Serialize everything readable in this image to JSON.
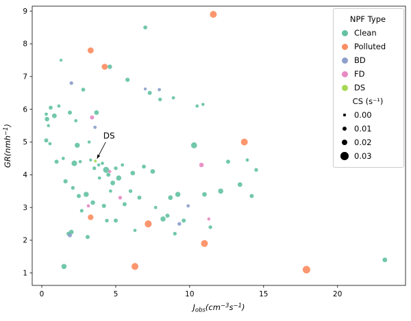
{
  "chart_data": {
    "type": "scatter",
    "title": "",
    "xlabel": "J_obs (cm^-3 s^-1)",
    "ylabel": "GR (nm h^-1)",
    "xlabel_parts": [
      {
        "t": "J",
        "style": "norm"
      },
      {
        "t": "obs",
        "style": "sub"
      },
      {
        "t": "(cm",
        "style": "norm"
      },
      {
        "t": "−3",
        "style": "sup"
      },
      {
        "t": "s",
        "style": "norm"
      },
      {
        "t": "−1",
        "style": "sup"
      },
      {
        "t": ")",
        "style": "norm"
      }
    ],
    "ylabel_parts": [
      {
        "t": "GR(nmh",
        "style": "norm"
      },
      {
        "t": "−1",
        "style": "sup"
      },
      {
        "t": ")",
        "style": "norm"
      }
    ],
    "xlim": [
      -0.65,
      24.6
    ],
    "ylim": [
      0.62,
      9.15
    ],
    "xticks": [
      0,
      5,
      10,
      15,
      20
    ],
    "yticks": [
      1,
      2,
      3,
      4,
      5,
      6,
      7,
      8,
      9
    ],
    "grid": false,
    "legend": {
      "title": "NPF Type",
      "position": "upper right",
      "entries": [
        {
          "label": "Clean",
          "color": "#66c2a5"
        },
        {
          "label": "Polluted",
          "color": "#fc8d62"
        },
        {
          "label": "BD",
          "color": "#8da0cb"
        },
        {
          "label": "FD",
          "color": "#e78ac3"
        },
        {
          "label": "DS",
          "color": "#a6d854"
        }
      ],
      "size_title": "CS (s⁻¹)",
      "size_entries": [
        {
          "label": "0.00",
          "cs": 0.0
        },
        {
          "label": "0.01",
          "cs": 0.01
        },
        {
          "label": "0.02",
          "cs": 0.02
        },
        {
          "label": "0.03",
          "cs": 0.03
        }
      ]
    },
    "annotation": {
      "text": "DS",
      "text_at": [
        4.55,
        5.1
      ],
      "point_at": [
        3.62,
        4.42
      ]
    },
    "series": [
      {
        "name": "Clean",
        "color": "#66c2a5",
        "points": [
          [
            0.3,
            5.85,
            0.006
          ],
          [
            0.35,
            5.7,
            0.012
          ],
          [
            0.3,
            5.05,
            0.01
          ],
          [
            0.55,
            4.95,
            0.006
          ],
          [
            0.6,
            6.05,
            0.009
          ],
          [
            0.85,
            5.8,
            0.013
          ],
          [
            1.15,
            6.1,
            0.006
          ],
          [
            1.3,
            7.5,
            0.004
          ],
          [
            1.0,
            4.4,
            0.01
          ],
          [
            1.45,
            4.5,
            0.006
          ],
          [
            1.6,
            3.8,
            0.011
          ],
          [
            1.5,
            1.2,
            0.016
          ],
          [
            1.9,
            5.9,
            0.01
          ],
          [
            2.0,
            2.25,
            0.013
          ],
          [
            2.1,
            3.6,
            0.008
          ],
          [
            2.3,
            5.65,
            0.006
          ],
          [
            2.4,
            4.9,
            0.015
          ],
          [
            2.5,
            3.35,
            0.01
          ],
          [
            2.6,
            4.4,
            0.006
          ],
          [
            2.8,
            6.6,
            0.009
          ],
          [
            3.0,
            3.4,
            0.016
          ],
          [
            3.1,
            2.1,
            0.01
          ],
          [
            3.2,
            5.0,
            0.005
          ],
          [
            3.45,
            3.15,
            0.012
          ],
          [
            3.55,
            4.2,
            0.008
          ],
          [
            3.7,
            5.9,
            0.013
          ],
          [
            3.9,
            3.9,
            0.006
          ],
          [
            4.6,
            7.3,
            0.012
          ],
          [
            4.1,
            4.35,
            0.006
          ],
          [
            4.2,
            3.05,
            0.011
          ],
          [
            4.4,
            2.6,
            0.008
          ],
          [
            4.5,
            4.0,
            0.01
          ],
          [
            4.65,
            3.5,
            0.006
          ],
          [
            4.8,
            3.75,
            0.013
          ],
          [
            5.0,
            4.2,
            0.008
          ],
          [
            5.0,
            2.6,
            0.01
          ],
          [
            5.2,
            3.9,
            0.016
          ],
          [
            5.45,
            4.3,
            0.006
          ],
          [
            5.6,
            3.1,
            0.01
          ],
          [
            5.8,
            6.9,
            0.011
          ],
          [
            6.0,
            3.5,
            0.008
          ],
          [
            6.15,
            4.05,
            0.013
          ],
          [
            6.3,
            2.3,
            0.006
          ],
          [
            6.6,
            3.3,
            0.01
          ],
          [
            7.0,
            8.5,
            0.009
          ],
          [
            7.3,
            6.5,
            0.01
          ],
          [
            7.5,
            4.1,
            0.013
          ],
          [
            7.7,
            3.0,
            0.006
          ],
          [
            8.0,
            6.3,
            0.008
          ],
          [
            8.2,
            2.65,
            0.016
          ],
          [
            8.5,
            2.75,
            0.01
          ],
          [
            8.7,
            3.3,
            0.013
          ],
          [
            9.0,
            2.2,
            0.008
          ],
          [
            9.2,
            3.4,
            0.016
          ],
          [
            9.6,
            2.6,
            0.01
          ],
          [
            10.3,
            4.9,
            0.02
          ],
          [
            10.5,
            6.1,
            0.006
          ],
          [
            11.0,
            3.4,
            0.013
          ],
          [
            11.4,
            2.4,
            0.008
          ],
          [
            12.1,
            3.5,
            0.016
          ],
          [
            12.6,
            4.4,
            0.01
          ],
          [
            13.4,
            3.7,
            0.013
          ],
          [
            14.2,
            3.35,
            0.01
          ],
          [
            14.5,
            4.15,
            0.008
          ],
          [
            23.2,
            1.4,
            0.013
          ],
          [
            13.9,
            4.45,
            0.006
          ],
          [
            3.3,
            4.45,
            0.004
          ],
          [
            3.85,
            4.3,
            0.005
          ],
          [
            2.7,
            2.9,
            0.007
          ],
          [
            1.8,
            2.2,
            0.009
          ],
          [
            0.45,
            5.5,
            0.005
          ],
          [
            2.2,
            4.35,
            0.018
          ],
          [
            4.35,
            4.15,
            0.02
          ],
          [
            6.9,
            4.25,
            0.009
          ],
          [
            8.9,
            6.35,
            0.006
          ],
          [
            10.9,
            6.15,
            0.005
          ]
        ]
      },
      {
        "name": "Polluted",
        "color": "#fc8d62",
        "points": [
          [
            3.3,
            7.8,
            0.02
          ],
          [
            4.25,
            7.3,
            0.02
          ],
          [
            11.6,
            8.9,
            0.024
          ],
          [
            3.3,
            2.7,
            0.018
          ],
          [
            6.3,
            1.2,
            0.024
          ],
          [
            7.2,
            2.5,
            0.025
          ],
          [
            11.0,
            1.9,
            0.024
          ],
          [
            13.7,
            5.0,
            0.024
          ],
          [
            17.9,
            1.1,
            0.028
          ]
        ]
      },
      {
        "name": "BD",
        "color": "#8da0cb",
        "points": [
          [
            2.0,
            6.8,
            0.008
          ],
          [
            3.6,
            5.45,
            0.006
          ],
          [
            7.0,
            6.62,
            0.004
          ],
          [
            7.95,
            6.6,
            0.006
          ],
          [
            1.9,
            2.15,
            0.01
          ],
          [
            9.3,
            2.5,
            0.008
          ],
          [
            9.9,
            3.05,
            0.006
          ]
        ]
      },
      {
        "name": "FD",
        "color": "#e78ac3",
        "points": [
          [
            3.4,
            5.75,
            0.01
          ],
          [
            4.6,
            4.1,
            0.004
          ],
          [
            5.3,
            3.3,
            0.008
          ],
          [
            10.8,
            4.3,
            0.012
          ],
          [
            11.3,
            2.65,
            0.005
          ],
          [
            3.15,
            3.05,
            0.006
          ]
        ]
      },
      {
        "name": "DS",
        "color": "#a6d854",
        "points": [
          [
            3.62,
            4.42,
            0.003
          ]
        ]
      }
    ]
  }
}
